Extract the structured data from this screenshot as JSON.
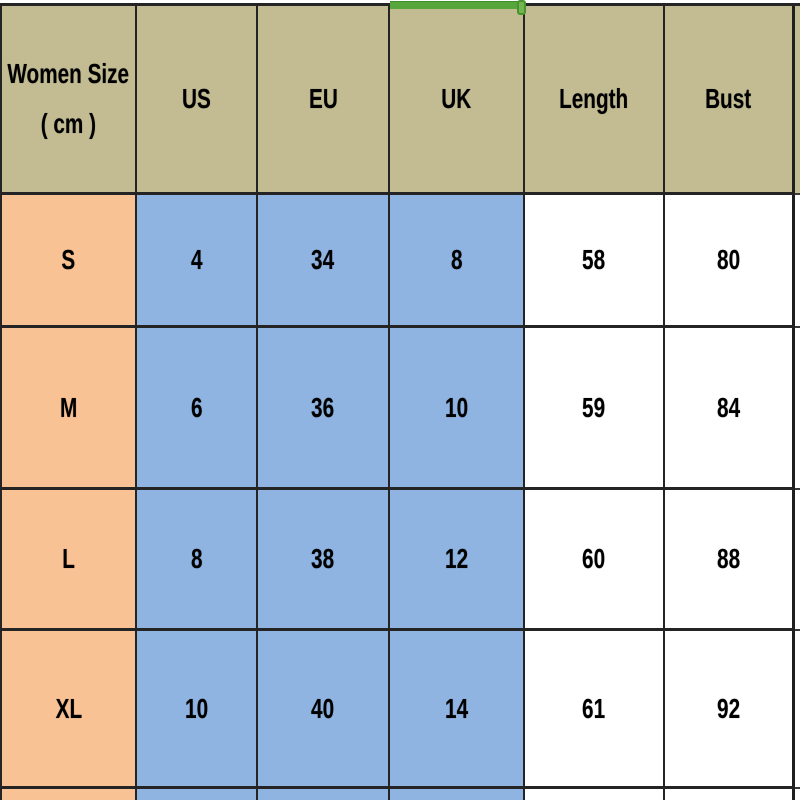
{
  "table": {
    "header": {
      "size_line1": "Women Size",
      "size_line2": "( cm )",
      "columns": [
        "US",
        "EU",
        "UK",
        "Length",
        "Bust"
      ]
    },
    "rows": [
      {
        "size": "S",
        "us": "4",
        "eu": "34",
        "uk": "8",
        "length": "58",
        "bust": "80"
      },
      {
        "size": "M",
        "us": "6",
        "eu": "36",
        "uk": "10",
        "length": "59",
        "bust": "84"
      },
      {
        "size": "L",
        "us": "8",
        "eu": "38",
        "uk": "12",
        "length": "60",
        "bust": "88"
      },
      {
        "size": "XL",
        "us": "10",
        "eu": "40",
        "uk": "14",
        "length": "61",
        "bust": "92"
      }
    ]
  },
  "chart_data": {
    "type": "table",
    "title": "Women Size ( cm )",
    "columns": [
      "Women Size ( cm )",
      "US",
      "EU",
      "UK",
      "Length",
      "Bust"
    ],
    "rows": [
      [
        "S",
        4,
        34,
        8,
        58,
        80
      ],
      [
        "M",
        6,
        36,
        10,
        59,
        84
      ],
      [
        "L",
        8,
        38,
        12,
        60,
        88
      ],
      [
        "XL",
        10,
        40,
        14,
        61,
        92
      ]
    ]
  },
  "selection_indicator": {
    "column": "UK",
    "position": "top-edge"
  },
  "colors": {
    "header_khaki": "#C3BC93",
    "size_column_peach": "#F9C295",
    "us_eu_uk_blue": "#8FB4E2",
    "white": "#FFFFFF",
    "gridline": "#242424",
    "selection_green": "#57A63B"
  }
}
